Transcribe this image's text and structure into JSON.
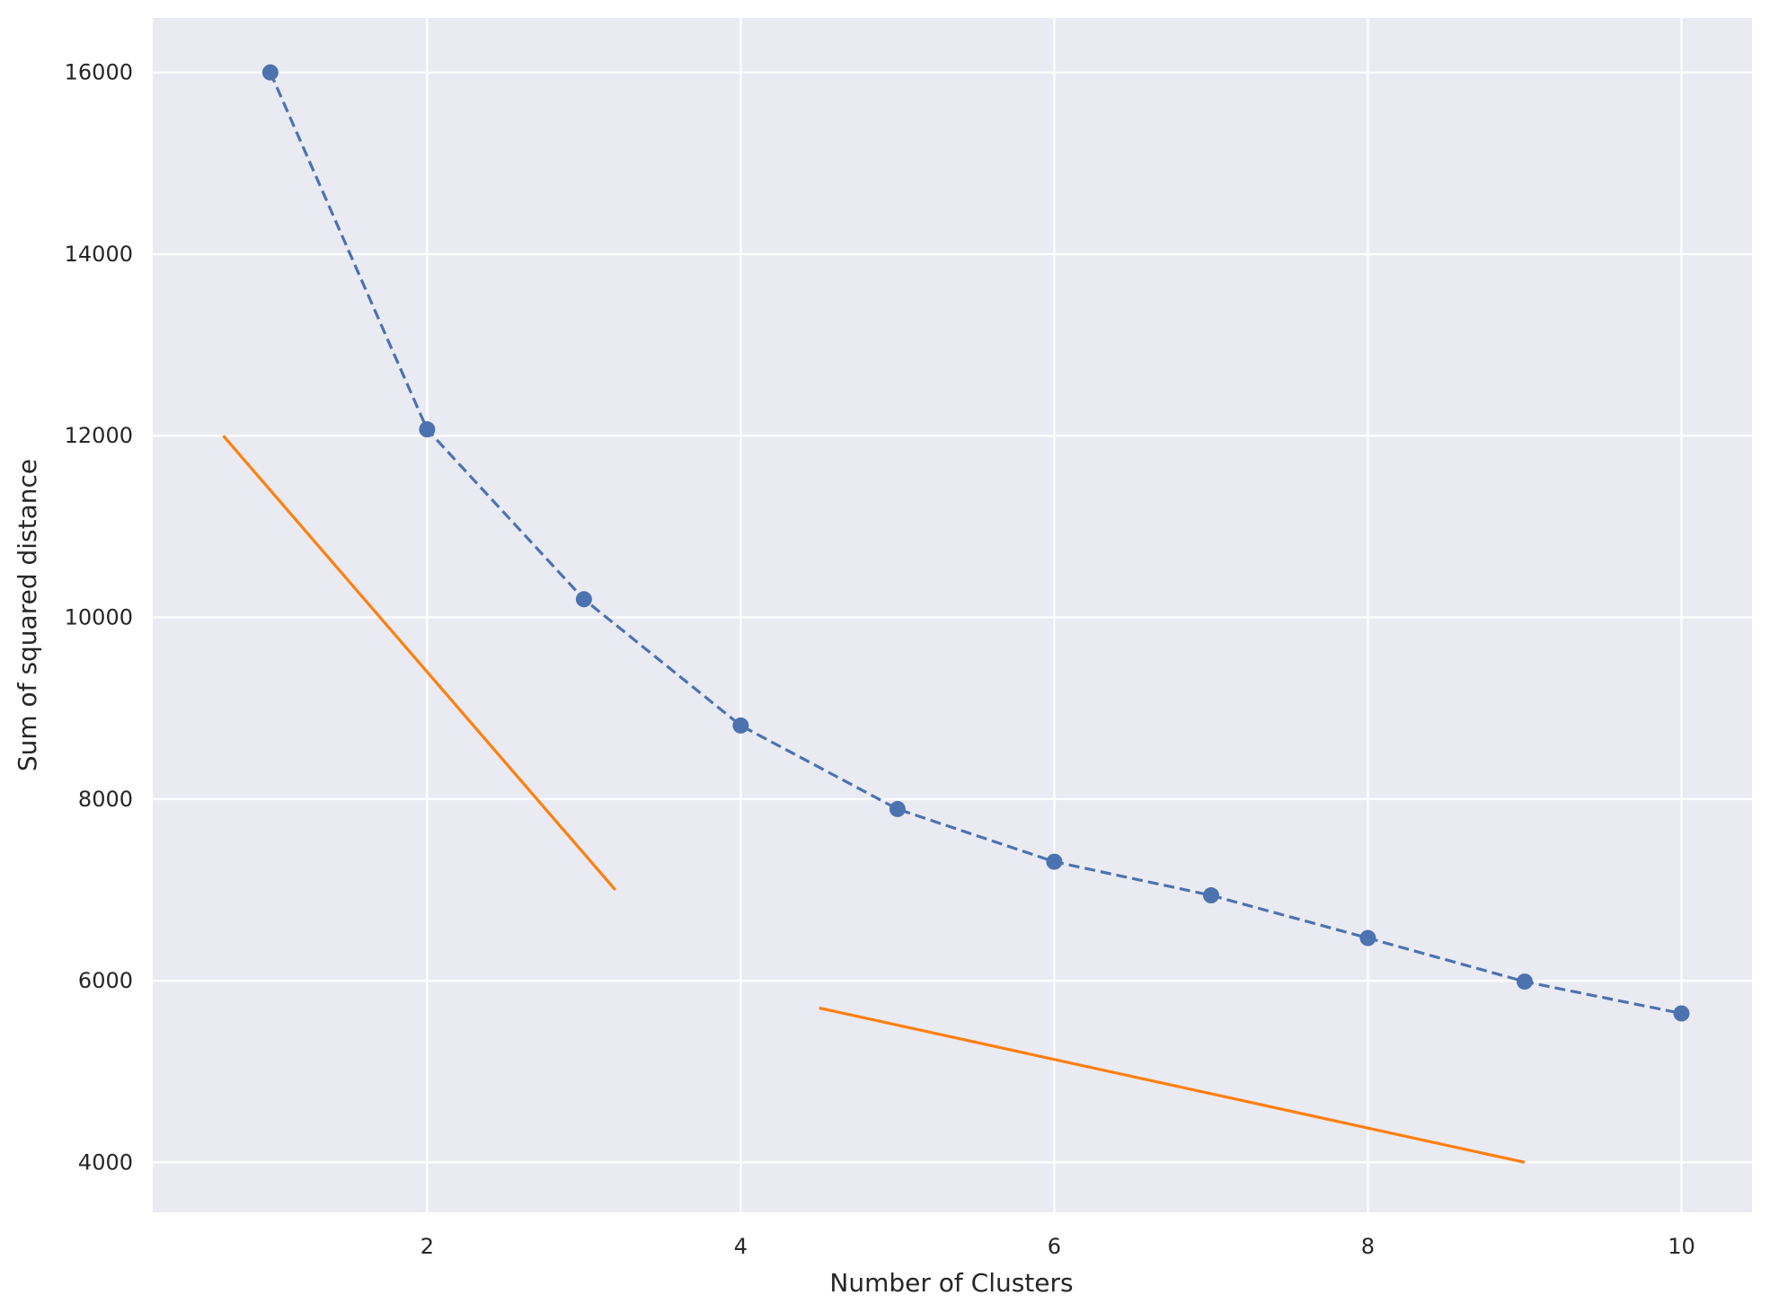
{
  "chart_data": {
    "type": "line",
    "title": "",
    "xlabel": "Number of Clusters",
    "ylabel": "Sum of squared distance",
    "xlim": [
      0.25,
      10.45
    ],
    "ylim": [
      3450,
      16600
    ],
    "x_ticks": [
      2,
      4,
      6,
      8,
      10
    ],
    "y_ticks": [
      4000,
      6000,
      8000,
      10000,
      12000,
      14000,
      16000
    ],
    "grid": true,
    "legend": "none",
    "colors": {
      "background": "#EAEAF2",
      "grid": "#FFFFFF",
      "series_main": "#4C72B0",
      "series_lines": "#FF7F0E"
    },
    "series": [
      {
        "style": "dashed-with-markers",
        "color": "#4C72B0",
        "x": [
          1,
          2,
          3,
          4,
          5,
          6,
          7,
          8,
          9,
          10
        ],
        "y": [
          16000,
          12070,
          10200,
          8810,
          7890,
          7310,
          6940,
          6470,
          5990,
          5640
        ]
      },
      {
        "style": "solid",
        "color": "#FF7F0E",
        "x": [
          0.7,
          3.2
        ],
        "y": [
          12000,
          7000
        ]
      },
      {
        "style": "solid",
        "color": "#FF7F0E",
        "x": [
          4.5,
          9.0
        ],
        "y": [
          5700,
          4000
        ]
      }
    ]
  }
}
